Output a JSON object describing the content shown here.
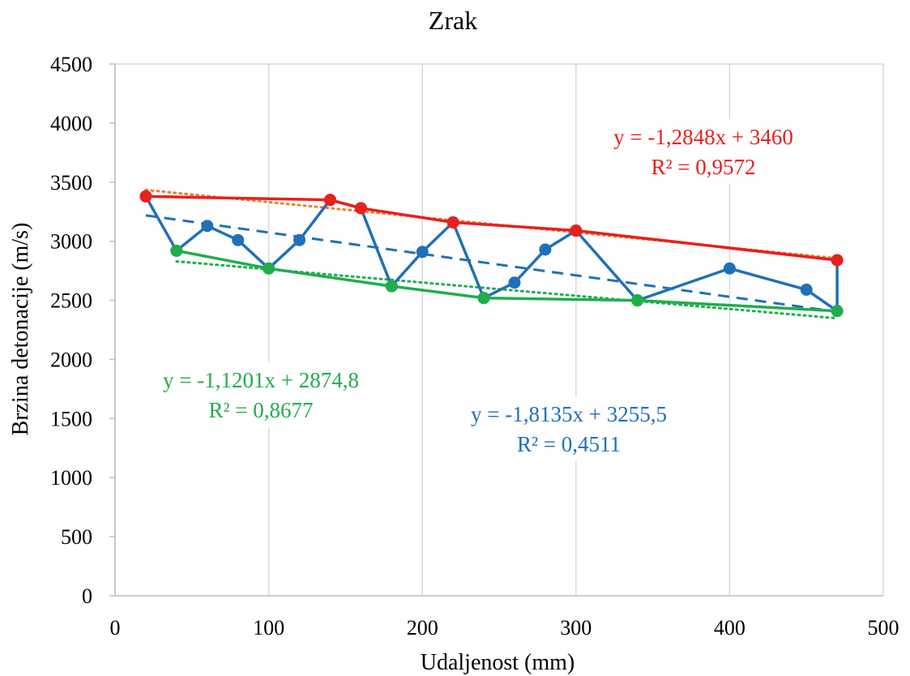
{
  "chart_data": {
    "type": "line",
    "title": "Zrak",
    "xlabel": "Udaljenost (mm)",
    "ylabel": "Brzina detonacije (m/s)",
    "xlim": [
      0,
      500
    ],
    "ylim": [
      0,
      4500
    ],
    "x_ticks": [
      0,
      100,
      200,
      300,
      400,
      500
    ],
    "y_ticks": [
      0,
      500,
      1000,
      1500,
      2000,
      2500,
      3000,
      3500,
      4000,
      4500
    ],
    "grid": "vertical",
    "legend": "none",
    "series": [
      {
        "color": "#2070B8",
        "x": [
          20,
          40,
          60,
          80,
          100,
          120,
          140,
          160,
          180,
          200,
          220,
          240,
          260,
          280,
          300,
          340,
          400,
          450,
          470,
          470
        ],
        "y": [
          3380,
          2920,
          3130,
          3010,
          2770,
          3010,
          3350,
          3280,
          2620,
          2910,
          3160,
          2520,
          2650,
          2930,
          3090,
          2500,
          2770,
          2590,
          2410,
          2840
        ]
      },
      {
        "color": "#E8201C",
        "x": [
          20,
          140,
          160,
          220,
          300,
          470
        ],
        "y": [
          3380,
          3350,
          3280,
          3160,
          3090,
          2840
        ]
      },
      {
        "color": "#1FAE4B",
        "x": [
          40,
          100,
          180,
          240,
          340,
          470
        ],
        "y": [
          2920,
          2770,
          2620,
          2520,
          2500,
          2410
        ]
      }
    ],
    "trendlines": [
      {
        "series_index": 0,
        "slope": -1.8135,
        "intercept": 3255.5,
        "x_range": [
          20,
          470
        ],
        "style": "dashed",
        "color": "#2070B8"
      },
      {
        "series_index": 1,
        "slope": -1.2848,
        "intercept": 3460,
        "x_range": [
          20,
          470
        ],
        "style": "dotted",
        "color": "#ED7D31"
      },
      {
        "series_index": 2,
        "slope": -1.1201,
        "intercept": 2874.8,
        "x_range": [
          40,
          470
        ],
        "style": "dotted",
        "color": "#1FAE4B"
      }
    ],
    "annotations": [
      {
        "equation": "y = -1,2848x + 3460",
        "r2": "R² = 0,9572",
        "color": "#E8201C"
      },
      {
        "equation": "y = -1,1201x + 2874,8",
        "r2": "R² = 0,8677",
        "color": "#1FAE4B"
      },
      {
        "equation": "y = -1,8135x + 3255,5",
        "r2": "R² = 0,4511",
        "color": "#2070B8"
      }
    ]
  }
}
